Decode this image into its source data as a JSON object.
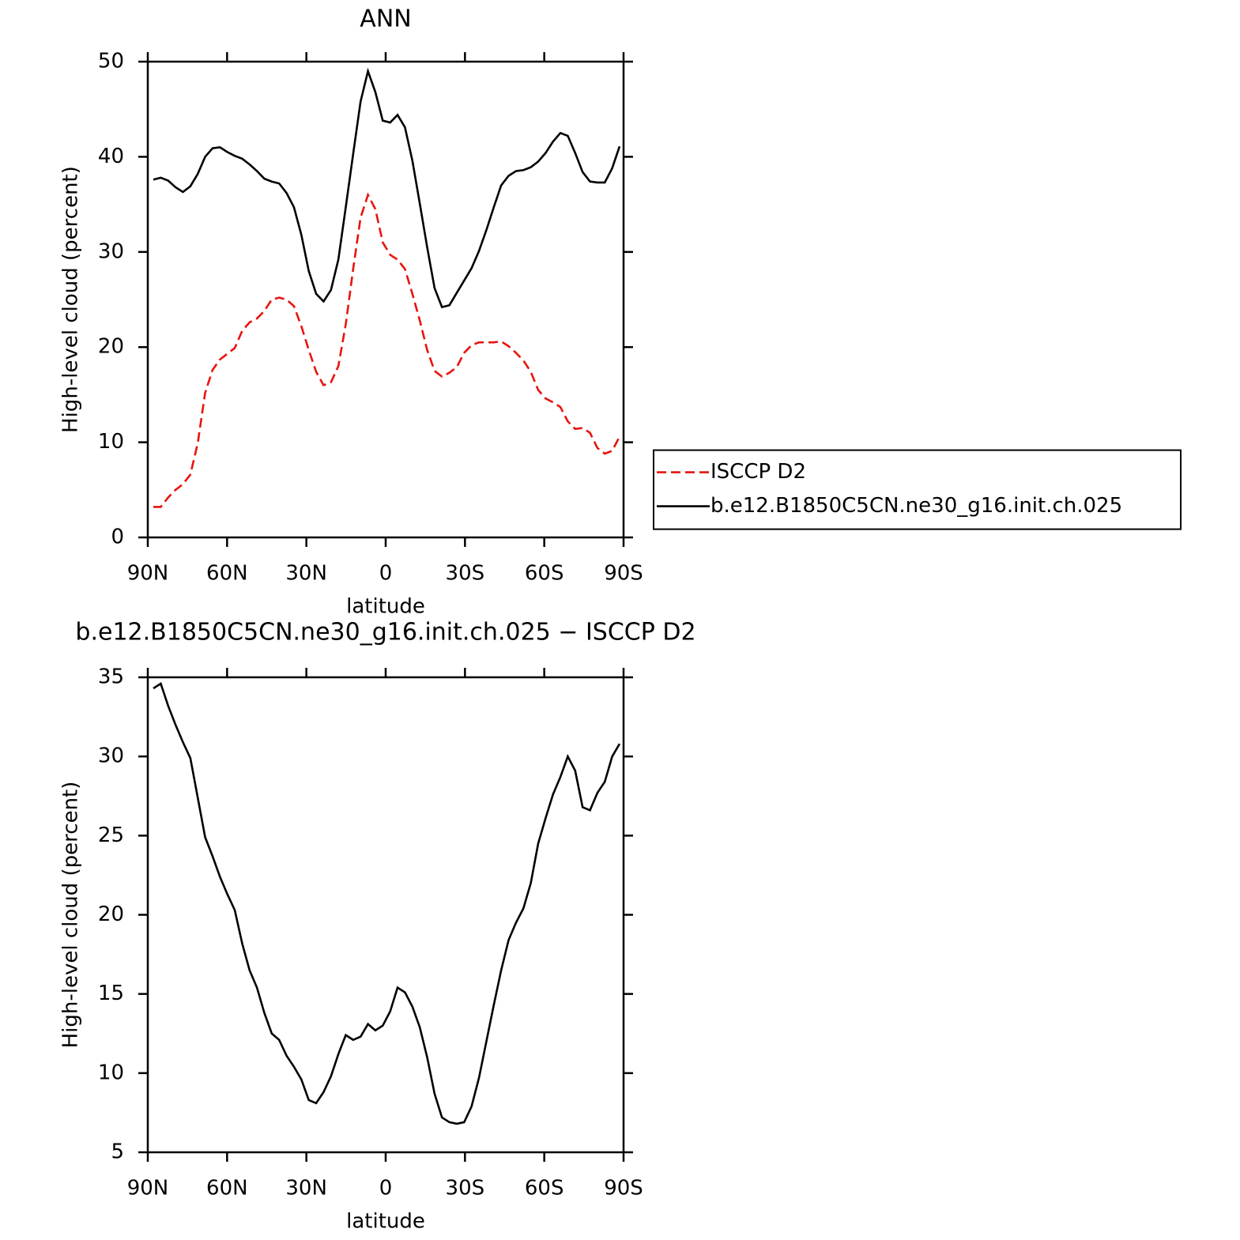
{
  "chart_data": [
    {
      "type": "line",
      "title": "ANN",
      "xlabel": "latitude",
      "ylabel": "High-level cloud (percent)",
      "x": [
        87.9,
        85.1,
        82.3,
        79.5,
        76.7,
        73.9,
        71.1,
        68.3,
        65.5,
        62.7,
        59.9,
        57.1,
        54.3,
        51.5,
        48.7,
        45.9,
        43.1,
        40.3,
        37.5,
        34.7,
        31.9,
        29.1,
        26.3,
        23.5,
        20.7,
        17.9,
        15.1,
        12.3,
        9.5,
        6.7,
        3.9,
        1.1,
        -1.7,
        -4.5,
        -7.3,
        -10.1,
        -12.9,
        -15.7,
        -18.5,
        -21.3,
        -24.1,
        -26.9,
        -29.7,
        -32.5,
        -35.3,
        -38.1,
        -40.9,
        -43.7,
        -46.5,
        -49.3,
        -52.1,
        -54.9,
        -57.7,
        -60.5,
        -63.3,
        -66.1,
        -68.9,
        -71.7,
        -74.5,
        -77.3,
        -80.1,
        -82.9,
        -85.7,
        -88.5
      ],
      "series": [
        {
          "name": "ISCCP D2",
          "color": "#e8140f",
          "dash": true,
          "values": [
            3.2,
            3.2,
            4.2,
            5.0,
            5.6,
            6.6,
            9.9,
            15.2,
            17.6,
            18.7,
            19.3,
            19.9,
            21.7,
            22.6,
            23.0,
            23.8,
            25.0,
            25.2,
            25.0,
            24.3,
            22.2,
            19.7,
            17.4,
            16.0,
            16.3,
            18.0,
            22.4,
            28.2,
            33.6,
            36.0,
            34.5,
            31.0,
            29.7,
            29.2,
            28.2,
            25.6,
            22.8,
            19.7,
            17.5,
            16.9,
            17.3,
            17.9,
            19.4,
            20.2,
            20.5,
            20.5,
            20.5,
            20.6,
            20.1,
            19.4,
            18.6,
            17.4,
            15.5,
            14.6,
            14.2,
            13.7,
            12.2,
            11.4,
            11.5,
            11.0,
            9.4,
            8.8,
            9.1,
            10.6
          ]
        },
        {
          "name": "b.e12.B1850C5CN.ne30_g16.init.ch.025",
          "color": "#000000",
          "dash": false,
          "values": [
            37.6,
            37.8,
            37.5,
            36.8,
            36.3,
            36.9,
            38.2,
            40.0,
            40.9,
            41.0,
            40.5,
            40.1,
            39.8,
            39.2,
            38.5,
            37.7,
            37.4,
            37.2,
            36.2,
            34.7,
            31.8,
            28.0,
            25.6,
            24.8,
            26.0,
            29.2,
            34.7,
            40.3,
            45.8,
            49.0,
            46.8,
            43.8,
            43.6,
            44.4,
            43.1,
            39.6,
            35.1,
            30.5,
            26.2,
            24.2,
            24.4,
            25.7,
            27.0,
            28.3,
            30.1,
            32.3,
            34.7,
            37.0,
            38.0,
            38.5,
            38.6,
            38.9,
            39.5,
            40.4,
            41.6,
            42.5,
            42.2,
            40.4,
            38.4,
            37.4,
            37.3,
            37.3,
            38.8,
            41.1
          ]
        }
      ],
      "xlim": [
        90,
        -90
      ],
      "xticks": [
        {
          "value": 90,
          "label": "90N"
        },
        {
          "value": 60,
          "label": "60N"
        },
        {
          "value": 30,
          "label": "30N"
        },
        0,
        {
          "value": -30,
          "label": "30S"
        },
        {
          "value": -60,
          "label": "60S"
        },
        {
          "value": -90,
          "label": "90S"
        }
      ],
      "ylim": [
        0,
        50
      ],
      "yticks": [
        0,
        10,
        20,
        30,
        40,
        50
      ],
      "legend": "outside-right"
    },
    {
      "type": "line",
      "title": "b.e12.B1850C5CN.ne30_g16.init.ch.025 − ISCCP D2",
      "xlabel": "latitude",
      "ylabel": "High-level cloud (percent)",
      "x": [
        87.9,
        85.1,
        82.3,
        79.5,
        76.7,
        73.9,
        71.1,
        68.3,
        65.5,
        62.7,
        59.9,
        57.1,
        54.3,
        51.5,
        48.7,
        45.9,
        43.1,
        40.3,
        37.5,
        34.7,
        31.9,
        29.1,
        26.3,
        23.5,
        20.7,
        17.9,
        15.1,
        12.3,
        9.5,
        6.7,
        3.9,
        1.1,
        -1.7,
        -4.5,
        -7.3,
        -10.1,
        -12.9,
        -15.7,
        -18.5,
        -21.3,
        -24.1,
        -26.9,
        -29.7,
        -32.5,
        -35.3,
        -38.1,
        -40.9,
        -43.7,
        -46.5,
        -49.3,
        -52.1,
        -54.9,
        -57.7,
        -60.5,
        -63.3,
        -66.1,
        -68.9,
        -71.7,
        -74.5,
        -77.3,
        -80.1,
        -82.9,
        -85.7,
        -88.5
      ],
      "series": [
        {
          "color": "#000000",
          "dash": false,
          "values": [
            34.3,
            34.6,
            33.2,
            32.0,
            30.9,
            29.9,
            27.4,
            24.9,
            23.7,
            22.4,
            21.3,
            20.3,
            18.2,
            16.5,
            15.4,
            13.8,
            12.5,
            12.1,
            11.1,
            10.4,
            9.6,
            8.3,
            8.1,
            8.8,
            9.8,
            11.2,
            12.4,
            12.1,
            12.3,
            13.1,
            12.7,
            13.0,
            13.9,
            15.4,
            15.1,
            14.2,
            12.9,
            11.0,
            8.7,
            7.2,
            6.9,
            6.8,
            6.9,
            7.9,
            9.7,
            12.0,
            14.3,
            16.5,
            18.4,
            19.5,
            20.4,
            22.0,
            24.5,
            26.1,
            27.6,
            28.7,
            30.0,
            29.1,
            26.8,
            26.6,
            27.7,
            28.4,
            30.0,
            30.8
          ]
        }
      ],
      "xlim": [
        90,
        -90
      ],
      "xticks": [
        {
          "value": 90,
          "label": "90N"
        },
        {
          "value": 60,
          "label": "60N"
        },
        {
          "value": 30,
          "label": "30N"
        },
        0,
        {
          "value": -30,
          "label": "30S"
        },
        {
          "value": -60,
          "label": "60S"
        },
        {
          "value": -90,
          "label": "90S"
        }
      ],
      "ylim": [
        5,
        35
      ],
      "yticks": [
        5,
        10,
        15,
        20,
        25,
        30,
        35
      ]
    }
  ]
}
